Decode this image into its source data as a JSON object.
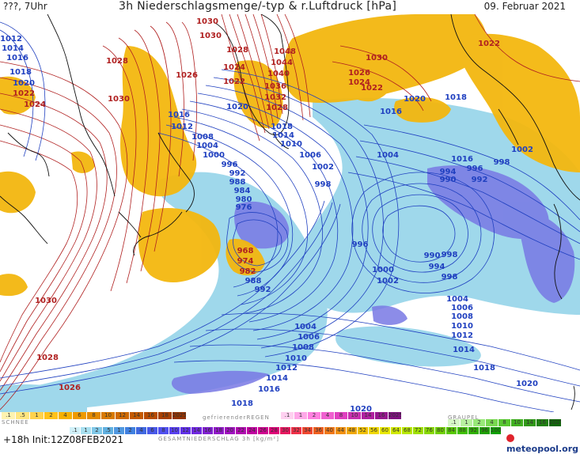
{
  "header": {
    "left": "???, 7Uhr",
    "title": "3h Niederschlagsmenge/-typ & r.Luftdruck [hPa]",
    "date": "09. Februar 2021"
  },
  "footer": {
    "run": "+18h  Init:12Z08FEB2021",
    "logo": "meteopool.org"
  },
  "colors": {
    "snow": "#f0b400",
    "rain": "#8fd3e8",
    "rain_heavy": "#7070e0",
    "isobar_high": "#b02020",
    "isobar_low": "#2040c0",
    "coast": "#000000"
  },
  "legend": {
    "snow_title": "SCHNEE",
    "snow": [
      {
        "label": ".1",
        "color": "#fff3b0"
      },
      {
        "label": ".5",
        "color": "#ffe680"
      },
      {
        "label": "1",
        "color": "#ffd24d"
      },
      {
        "label": "2",
        "color": "#ffc21a"
      },
      {
        "label": "4",
        "color": "#f5b000"
      },
      {
        "label": "6",
        "color": "#ee9a00"
      },
      {
        "label": "8",
        "color": "#e38a00"
      },
      {
        "label": "10",
        "color": "#d97a00"
      },
      {
        "label": "12",
        "color": "#cf6a00"
      },
      {
        "label": "14",
        "color": "#c45a00"
      },
      {
        "label": "16",
        "color": "#b84c00"
      },
      {
        "label": "18",
        "color": "#a84000"
      },
      {
        "label": "2025+",
        "color": "#943300"
      }
    ],
    "frz_title": "gefrierenderREGEN",
    "frz": [
      {
        "label": ".1",
        "color": "#ffd0f0"
      },
      {
        "label": "1",
        "color": "#ffa8e8"
      },
      {
        "label": "2",
        "color": "#ff80e0"
      },
      {
        "label": "4",
        "color": "#f060d0"
      },
      {
        "label": "8",
        "color": "#e040c0"
      },
      {
        "label": "10",
        "color": "#c830b0"
      },
      {
        "label": "14",
        "color": "#b020a0"
      },
      {
        "label": "16",
        "color": "#981890"
      },
      {
        "label": "2025+",
        "color": "#801080"
      }
    ],
    "graupel_title": "GRAUPEL",
    "graupel": [
      {
        "label": ".1",
        "color": "#d8f8c8"
      },
      {
        "label": "1",
        "color": "#b8f0a0"
      },
      {
        "label": "2",
        "color": "#98e878"
      },
      {
        "label": "4",
        "color": "#78d850"
      },
      {
        "label": "8",
        "color": "#58c830"
      },
      {
        "label": "10",
        "color": "#40b020"
      },
      {
        "label": "14",
        "color": "#309818"
      },
      {
        "label": "16",
        "color": "#208010"
      },
      {
        "label": "2025+",
        "color": "#106808"
      }
    ],
    "total_title": "GESAMTNIEDERSCHLAG 3h [kg/m²]",
    "total": [
      {
        "label": ".1",
        "color": "#d0f0f8"
      },
      {
        "label": "1",
        "color": "#a8e0f0"
      },
      {
        "label": "2",
        "color": "#80c8e8"
      },
      {
        "label": ".5",
        "color": "#60b0e0"
      },
      {
        "label": "1",
        "color": "#5098e0"
      },
      {
        "label": "2",
        "color": "#4080e0"
      },
      {
        "label": "4",
        "color": "#4068e0"
      },
      {
        "label": "6",
        "color": "#4858e8"
      },
      {
        "label": "8",
        "color": "#5050f0"
      },
      {
        "label": "10",
        "color": "#5840f0"
      },
      {
        "label": "12",
        "color": "#6030e8"
      },
      {
        "label": "14",
        "color": "#7028e0"
      },
      {
        "label": "16",
        "color": "#8020d0"
      },
      {
        "label": "18",
        "color": "#9018c8"
      },
      {
        "label": "20",
        "color": "#a010c0"
      },
      {
        "label": "22",
        "color": "#b008b0"
      },
      {
        "label": "24",
        "color": "#c000a0"
      },
      {
        "label": "26",
        "color": "#d00090"
      },
      {
        "label": "28",
        "color": "#e00078"
      },
      {
        "label": "30",
        "color": "#e81860"
      },
      {
        "label": "32",
        "color": "#f03048"
      },
      {
        "label": "34",
        "color": "#f04830"
      },
      {
        "label": "36",
        "color": "#f06020"
      },
      {
        "label": "40",
        "color": "#f07818"
      },
      {
        "label": "44",
        "color": "#f09010"
      },
      {
        "label": "48",
        "color": "#f0a808"
      },
      {
        "label": "52",
        "color": "#f0c000"
      },
      {
        "label": "56",
        "color": "#f0d800"
      },
      {
        "label": "60",
        "color": "#e8e800"
      },
      {
        "label": "64",
        "color": "#d0e800"
      },
      {
        "label": "68",
        "color": "#b8e800"
      },
      {
        "label": "72",
        "color": "#a0e000"
      },
      {
        "label": "76",
        "color": "#88d800"
      },
      {
        "label": "80",
        "color": "#70d000"
      },
      {
        "label": "84",
        "color": "#58c800"
      },
      {
        "label": "88",
        "color": "#40c000"
      },
      {
        "label": "92",
        "color": "#30b000"
      },
      {
        "label": "96",
        "color": "#20a000"
      },
      {
        "label": "100",
        "color": "#10a000"
      }
    ]
  },
  "isobar_labels": [
    {
      "t": "1012",
      "c": "low"
    },
    {
      "t": "1014",
      "c": "low"
    },
    {
      "t": "1016",
      "c": "low"
    },
    {
      "t": "1018",
      "c": "low"
    },
    {
      "t": "1020",
      "c": "low"
    },
    {
      "t": "1022",
      "c": "high"
    },
    {
      "t": "1024",
      "c": "high"
    },
    {
      "t": "1028",
      "c": "high"
    },
    {
      "t": "1030",
      "c": "high"
    },
    {
      "t": "1026",
      "c": "high"
    },
    {
      "t": "1030",
      "c": "high"
    },
    {
      "t": "1030",
      "c": "high"
    },
    {
      "t": "1028",
      "c": "high"
    },
    {
      "t": "1024",
      "c": "high"
    },
    {
      "t": "1022",
      "c": "high"
    },
    {
      "t": "1020",
      "c": "low"
    },
    {
      "t": "1048",
      "c": "high"
    },
    {
      "t": "1044",
      "c": "high"
    },
    {
      "t": "1040",
      "c": "high"
    },
    {
      "t": "1036",
      "c": "high"
    },
    {
      "t": "1032",
      "c": "high"
    },
    {
      "t": "1028",
      "c": "high"
    },
    {
      "t": "1030",
      "c": "high"
    },
    {
      "t": "1026",
      "c": "high"
    },
    {
      "t": "1024",
      "c": "high"
    },
    {
      "t": "1022",
      "c": "high"
    },
    {
      "t": "1020",
      "c": "low"
    },
    {
      "t": "1018",
      "c": "low"
    },
    {
      "t": "1016",
      "c": "low"
    },
    {
      "t": "1022",
      "c": "high"
    },
    {
      "t": "1016",
      "c": "low"
    },
    {
      "t": "1012",
      "c": "low"
    },
    {
      "t": "1008",
      "c": "low"
    },
    {
      "t": "1004",
      "c": "low"
    },
    {
      "t": "1000",
      "c": "low"
    },
    {
      "t": "996",
      "c": "low"
    },
    {
      "t": "992",
      "c": "low"
    },
    {
      "t": "988",
      "c": "low"
    },
    {
      "t": "984",
      "c": "low"
    },
    {
      "t": "980",
      "c": "low"
    },
    {
      "t": "976",
      "c": "low"
    },
    {
      "t": "1018",
      "c": "low"
    },
    {
      "t": "1014",
      "c": "low"
    },
    {
      "t": "1010",
      "c": "low"
    },
    {
      "t": "1006",
      "c": "low"
    },
    {
      "t": "1002",
      "c": "low"
    },
    {
      "t": "998",
      "c": "low"
    },
    {
      "t": "1004",
      "c": "low"
    },
    {
      "t": "1016",
      "c": "low"
    },
    {
      "t": "994",
      "c": "low"
    },
    {
      "t": "996",
      "c": "low"
    },
    {
      "t": "998",
      "c": "low"
    },
    {
      "t": "990",
      "c": "low"
    },
    {
      "t": "992",
      "c": "low"
    },
    {
      "t": "1002",
      "c": "low"
    },
    {
      "t": "968",
      "c": "high"
    },
    {
      "t": "974",
      "c": "high"
    },
    {
      "t": "982",
      "c": "high"
    },
    {
      "t": "988",
      "c": "low"
    },
    {
      "t": "992",
      "c": "low"
    },
    {
      "t": "996",
      "c": "low"
    },
    {
      "t": "1000",
      "c": "low"
    },
    {
      "t": "1002",
      "c": "low"
    },
    {
      "t": "998",
      "c": "low"
    },
    {
      "t": "990",
      "c": "low"
    },
    {
      "t": "994",
      "c": "low"
    },
    {
      "t": "998",
      "c": "low"
    },
    {
      "t": "1004",
      "c": "low"
    },
    {
      "t": "1006",
      "c": "low"
    },
    {
      "t": "1008",
      "c": "low"
    },
    {
      "t": "1010",
      "c": "low"
    },
    {
      "t": "1012",
      "c": "low"
    },
    {
      "t": "1014",
      "c": "low"
    },
    {
      "t": "1004",
      "c": "low"
    },
    {
      "t": "1006",
      "c": "low"
    },
    {
      "t": "1008",
      "c": "low"
    },
    {
      "t": "1010",
      "c": "low"
    },
    {
      "t": "1012",
      "c": "low"
    },
    {
      "t": "1014",
      "c": "low"
    },
    {
      "t": "1016",
      "c": "low"
    },
    {
      "t": "1018",
      "c": "low"
    },
    {
      "t": "1018",
      "c": "low"
    },
    {
      "t": "1020",
      "c": "low"
    },
    {
      "t": "1020",
      "c": "low"
    },
    {
      "t": "1030",
      "c": "high"
    },
    {
      "t": "1028",
      "c": "high"
    },
    {
      "t": "1026",
      "c": "high"
    }
  ]
}
